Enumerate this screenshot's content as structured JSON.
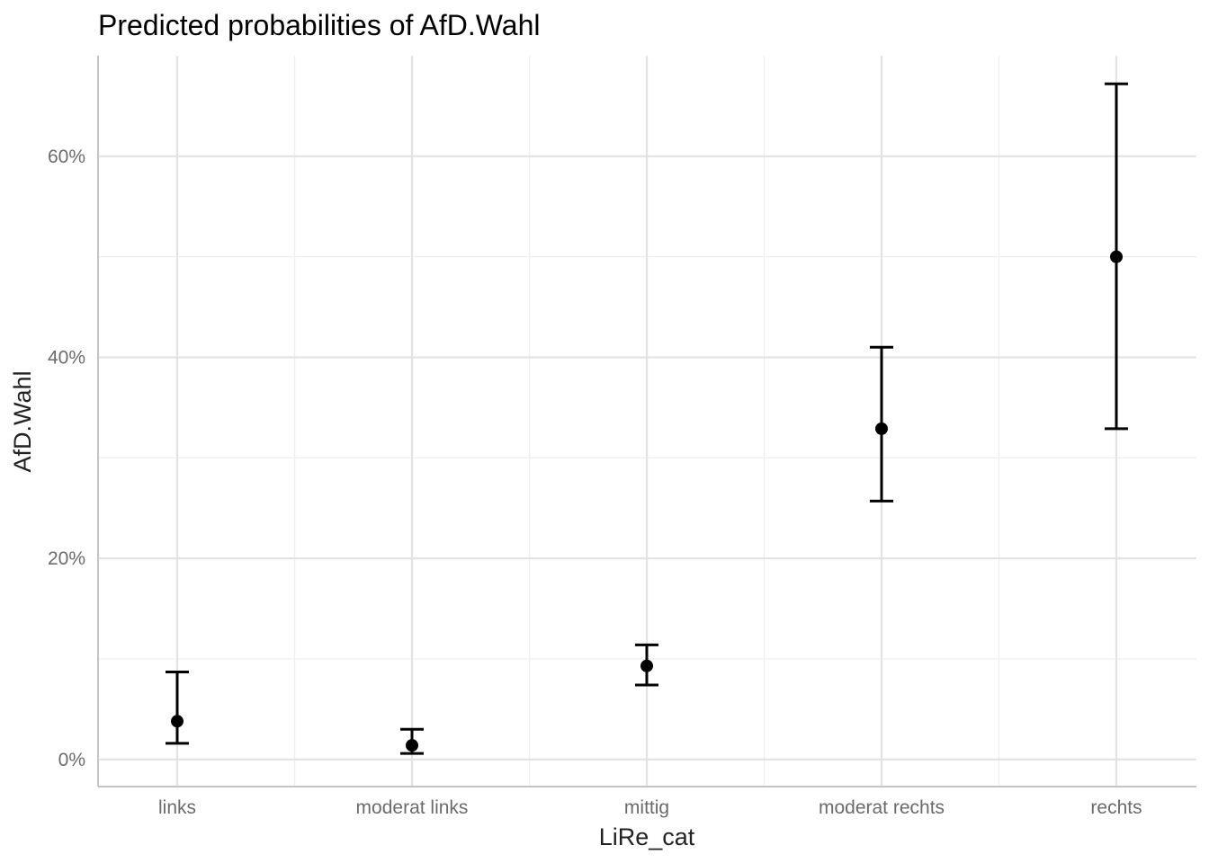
{
  "chart_data": {
    "type": "scatter",
    "title": "Predicted probabilities of AfD.Wahl",
    "xlabel": "LiRe_cat",
    "ylabel": "AfD.Wahl",
    "categories": [
      "links",
      "moderat links",
      "mittig",
      "moderat rechts",
      "rechts"
    ],
    "estimates": [
      0.038,
      0.014,
      0.093,
      0.329,
      0.5
    ],
    "conf_low": [
      0.016,
      0.006,
      0.074,
      0.257,
      0.329
    ],
    "conf_high": [
      0.087,
      0.03,
      0.114,
      0.41,
      0.672
    ],
    "y_ticks": [
      0,
      0.2,
      0.4,
      0.6
    ],
    "y_tick_labels": [
      "0%",
      "20%",
      "40%",
      "60%"
    ],
    "ylim": [
      -0.027,
      0.7
    ],
    "grid": true,
    "colors": {
      "points": "#000000",
      "grid": "#e3e3e3",
      "axis": "#c4c4c4"
    }
  }
}
